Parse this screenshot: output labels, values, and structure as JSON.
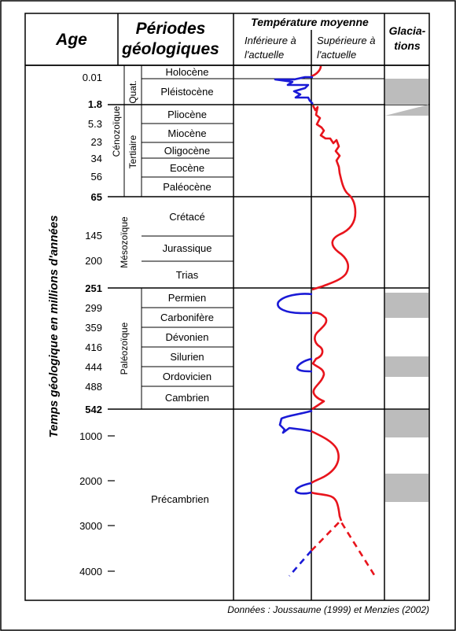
{
  "header": {
    "age": "Age",
    "periods_line1": "Périodes",
    "periods_line2": "géologiques",
    "temp_title": "Température moyenne",
    "lower_line1": "Inférieure à",
    "lower_line2": "l'actuelle",
    "upper_line1": "Supérieure à",
    "upper_line2": "l'actuelle",
    "glacia_line1": "Glacia-",
    "glacia_line2": "tions"
  },
  "y_axis_label": "Temps géologique en millions d'années",
  "ages": {
    "a0": "0.01",
    "a1": "1.8",
    "a2": "5.3",
    "a3": "23",
    "a4": "34",
    "a5": "56",
    "a6": "65",
    "a7": "145",
    "a8": "200",
    "a9": "251",
    "a10": "299",
    "a11": "359",
    "a12": "416",
    "a13": "444",
    "a14": "488",
    "a15": "542",
    "a16": "1000",
    "a17": "2000",
    "a18": "3000",
    "a19": "4000"
  },
  "eras": {
    "quat": "Quat.",
    "tertiaire": "Tertiaire",
    "cenozoique": "Cénozoïque",
    "mesozoique": "Mésozoïque",
    "paleozoique": "Paléozoïque"
  },
  "periods": {
    "p0": "Holocène",
    "p1": "Pléistocène",
    "p2": "Pliocène",
    "p3": "Miocène",
    "p4": "Oligocène",
    "p5": "Eocène",
    "p6": "Paléocène",
    "p7": "Crétacé",
    "p8": "Jurassique",
    "p9": "Trias",
    "p10": "Permien",
    "p11": "Carbonifère",
    "p12": "Dévonien",
    "p13": "Silurien",
    "p14": "Ordovicien",
    "p15": "Cambrien",
    "p16": "Précambrien"
  },
  "colors": {
    "warm": "#e8141c",
    "cold": "#1a1ad6",
    "glaciation": "#bcbcbc",
    "border": "#000000"
  },
  "source": "Données : Joussaume (1999) et Menzies (2002)"
}
